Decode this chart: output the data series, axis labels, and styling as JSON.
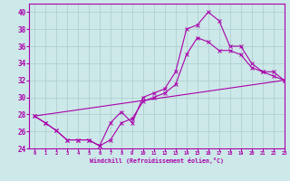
{
  "xlabel": "Windchill (Refroidissement éolien,°C)",
  "ylabel": "",
  "xlim": [
    -0.5,
    23
  ],
  "ylim": [
    24,
    41
  ],
  "xticks": [
    0,
    1,
    2,
    3,
    4,
    5,
    6,
    7,
    8,
    9,
    10,
    11,
    12,
    13,
    14,
    15,
    16,
    17,
    18,
    19,
    20,
    21,
    22,
    23
  ],
  "yticks": [
    24,
    26,
    28,
    30,
    32,
    34,
    36,
    38,
    40
  ],
  "bg_color": "#cce8e8",
  "line_color": "#aa00aa",
  "grid_color": "#aacccc",
  "line1_x": [
    0,
    1,
    2,
    3,
    4,
    5,
    6,
    7,
    8,
    9,
    10,
    11,
    12,
    13,
    14,
    15,
    16,
    17,
    18,
    19,
    20,
    21,
    22,
    23
  ],
  "line1_y": [
    27.8,
    27.0,
    26.1,
    25.0,
    25.0,
    25.0,
    24.3,
    27.0,
    28.3,
    27.0,
    30.0,
    30.5,
    31.0,
    33.0,
    38.0,
    38.5,
    40.0,
    39.0,
    36.0,
    36.0,
    34.0,
    33.0,
    33.0,
    32.0
  ],
  "line2_x": [
    0,
    1,
    2,
    3,
    4,
    5,
    6,
    7,
    8,
    9,
    10,
    11,
    12,
    13,
    14,
    15,
    16,
    17,
    18,
    19,
    20,
    21,
    22,
    23
  ],
  "line2_y": [
    27.8,
    27.0,
    26.1,
    25.0,
    25.0,
    25.0,
    24.3,
    25.0,
    27.0,
    27.5,
    29.5,
    30.0,
    30.5,
    31.5,
    35.0,
    37.0,
    36.5,
    35.5,
    35.5,
    35.0,
    33.5,
    33.0,
    32.5,
    32.0
  ],
  "line3_x": [
    0,
    23
  ],
  "line3_y": [
    27.8,
    32.0
  ]
}
